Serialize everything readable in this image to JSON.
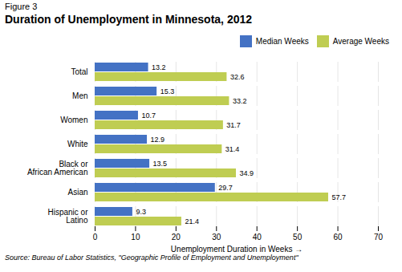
{
  "chart_data": {
    "type": "bar",
    "orientation": "horizontal",
    "title": "Duration of Unemployment in Minnesota, 2012",
    "annotations": [
      "Figure 3",
      "Source: Bureau of Labor Statistics, \"Geographic Profile of Employment and Unemployment\""
    ],
    "categories": [
      "Total",
      "Men",
      "Women",
      "White",
      "Black or\nAfrican American",
      "Asian",
      "Hispanic or\nLatino"
    ],
    "series": [
      {
        "name": "Median Weeks",
        "color": "#4472C4",
        "values": [
          13.2,
          15.3,
          10.7,
          12.9,
          13.5,
          29.7,
          9.3
        ]
      },
      {
        "name": "Average Weeks",
        "color": "#BFCD52",
        "values": [
          32.6,
          33.2,
          31.7,
          31.4,
          34.9,
          57.7,
          21.4
        ]
      }
    ],
    "xlabel": "Unemployment Duration in Weeks",
    "xlim": [
      0,
      70
    ],
    "xticks": [
      0,
      10,
      20,
      30,
      40,
      50,
      60,
      70
    ],
    "grid": true,
    "legend": "upper right",
    "data_labels": true
  }
}
